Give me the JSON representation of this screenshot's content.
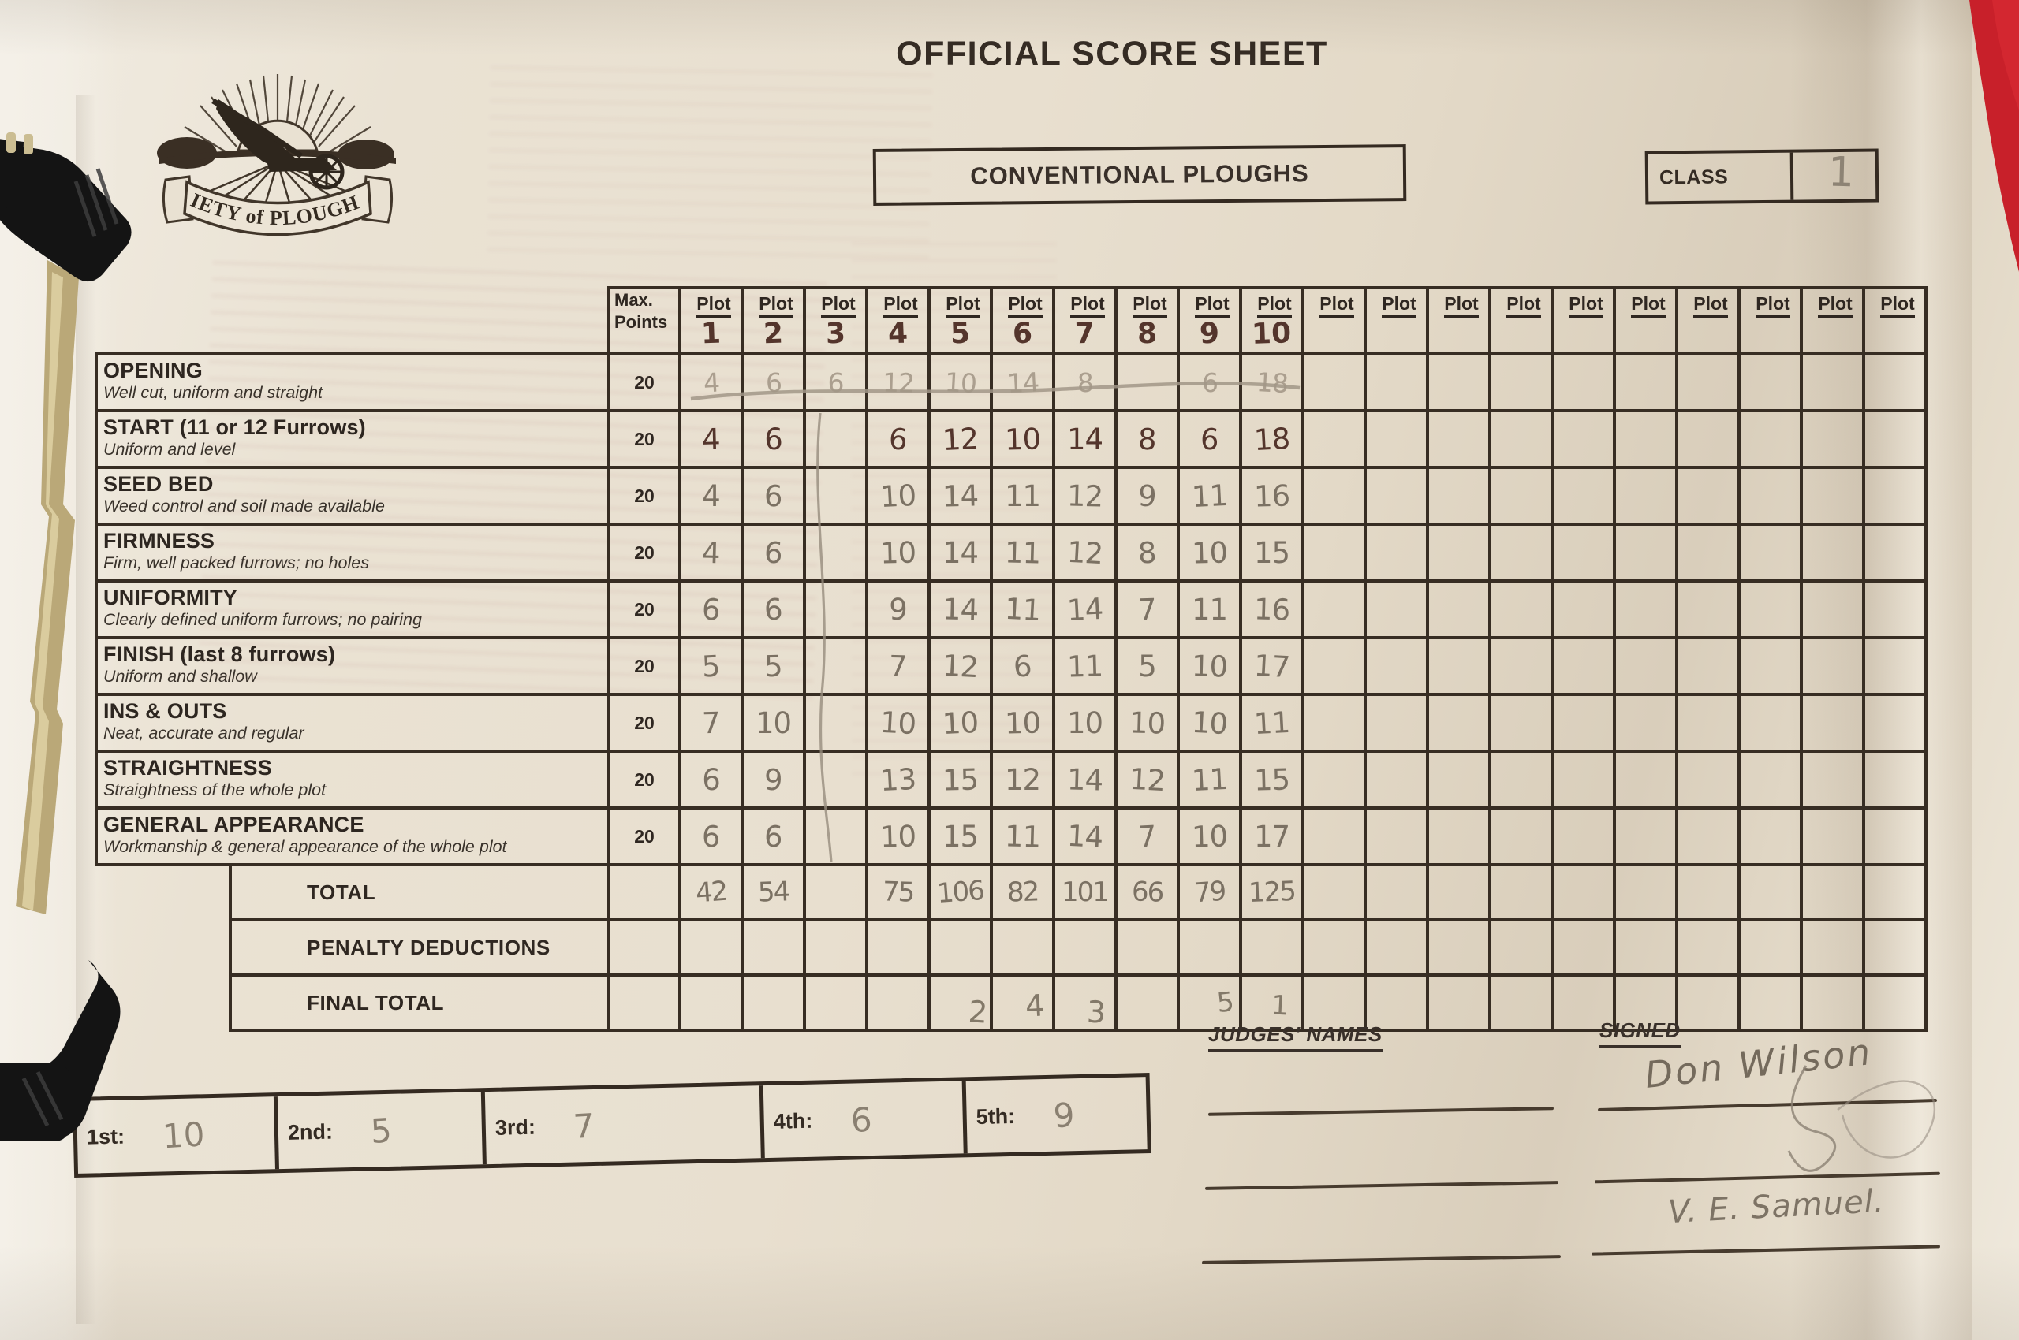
{
  "page": {
    "title": "OFFICIAL SCORE SHEET",
    "category_box": "CONVENTIONAL PLOUGHS",
    "class_label": "CLASS",
    "class_value": "1"
  },
  "logo": {
    "banner_text": "SOCIETY of PLOUGHMEN"
  },
  "table": {
    "max_points_header": [
      "Max.",
      "Points"
    ],
    "plot_header": "Plot",
    "plot_numbers": [
      "1",
      "2",
      "3",
      "4",
      "5",
      "6",
      "7",
      "8",
      "9",
      "10",
      "",
      "",
      "",
      "",
      "",
      "",
      "",
      "",
      "",
      ""
    ],
    "rows": [
      {
        "name": "OPENING",
        "desc": "Well cut, uniform and straight",
        "max": "20",
        "style": "faint",
        "struck": true,
        "scores": [
          "4",
          "6",
          "6",
          "12",
          "10",
          "14",
          "8",
          "",
          "6",
          "18"
        ]
      },
      {
        "name": "START (11 or 12 Furrows)",
        "desc": "Uniform and level",
        "max": "20",
        "style": "ink",
        "scores": [
          "4",
          "6",
          "",
          "6",
          "12",
          "10",
          "14",
          "8",
          "6",
          "18"
        ]
      },
      {
        "name": "SEED BED",
        "desc": "Weed control and soil made available",
        "max": "20",
        "style": "pencil",
        "scores": [
          "4",
          "6",
          "",
          "10",
          "14",
          "11",
          "12",
          "9",
          "11",
          "16"
        ]
      },
      {
        "name": "FIRMNESS",
        "desc": "Firm, well packed furrows; no holes",
        "max": "20",
        "style": "pencil",
        "scores": [
          "4",
          "6",
          "",
          "10",
          "14",
          "11",
          "12",
          "8",
          "10",
          "15"
        ]
      },
      {
        "name": "UNIFORMITY",
        "desc": "Clearly defined uniform furrows; no pairing",
        "max": "20",
        "style": "pencil",
        "scores": [
          "6",
          "6",
          "",
          "9",
          "14",
          "11",
          "14",
          "7",
          "11",
          "16"
        ]
      },
      {
        "name": "FINISH (last 8 furrows)",
        "desc": "Uniform and shallow",
        "max": "20",
        "style": "pencil",
        "scores": [
          "5",
          "5",
          "",
          "7",
          "12",
          "6",
          "11",
          "5",
          "10",
          "17"
        ]
      },
      {
        "name": "INS & OUTS",
        "desc": "Neat, accurate and regular",
        "max": "20",
        "style": "pencil",
        "scores": [
          "7",
          "10",
          "",
          "10",
          "10",
          "10",
          "10",
          "10",
          "10",
          "11"
        ]
      },
      {
        "name": "STRAIGHTNESS",
        "desc": "Straightness of the whole plot",
        "max": "20",
        "style": "pencil",
        "scores": [
          "6",
          "9",
          "",
          "13",
          "15",
          "12",
          "14",
          "12",
          "11",
          "15"
        ]
      },
      {
        "name": "GENERAL APPEARANCE",
        "desc": "Workmanship & general appearance of the whole plot",
        "max": "20",
        "style": "pencil",
        "scores": [
          "6",
          "6",
          "",
          "10",
          "15",
          "11",
          "14",
          "7",
          "10",
          "17"
        ]
      }
    ],
    "footer_rows": [
      {
        "label": "TOTAL",
        "scores": [
          "42",
          "54",
          "",
          "75",
          "106",
          "82",
          "101",
          "66",
          "79",
          "125"
        ]
      },
      {
        "label": "PENALTY DEDUCTIONS",
        "scores": []
      },
      {
        "label": "FINAL TOTAL",
        "scores": []
      }
    ]
  },
  "pencil_rank_notes": [
    "2",
    "4",
    "3",
    "5",
    "1"
  ],
  "placements": [
    {
      "label": "1st:",
      "value": "10"
    },
    {
      "label": "2nd:",
      "value": "5"
    },
    {
      "label": "3rd:",
      "value": "7"
    },
    {
      "label": "4th:",
      "value": "6"
    },
    {
      "label": "5th:",
      "value": "9"
    }
  ],
  "signing": {
    "judges_heading": "JUDGES' NAMES",
    "signed_heading": "SIGNED",
    "signatures": [
      "Don Wilson",
      "V. E. Samuel."
    ]
  }
}
